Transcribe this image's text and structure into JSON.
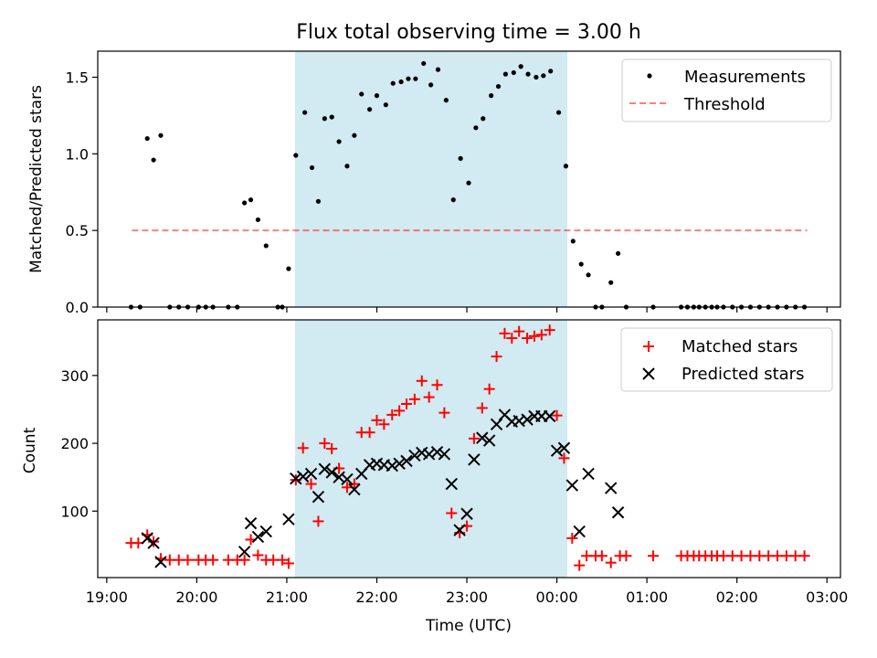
{
  "figure": {
    "title": "Flux total observing time = 3.00 h",
    "xlabel": "Time (UTC)",
    "x_ticks": [
      "19:00",
      "20:00",
      "21:00",
      "22:00",
      "23:00",
      "00:00",
      "01:00",
      "02:00",
      "03:00"
    ],
    "observing_window": {
      "start": "21:06",
      "end": "00:06",
      "color": "#add8e6"
    }
  },
  "chart_data": [
    {
      "type": "scatter",
      "title": "Flux total observing time = 3.00 h",
      "xlabel": "",
      "ylabel": "Matched/Predicted stars",
      "x_unit": "hours since 19:00 UTC",
      "xlim": [
        -0.1,
        8.15
      ],
      "ylim": [
        0,
        1.67
      ],
      "y_ticks": [
        "0.0",
        "0.5",
        "1.0",
        "1.5"
      ],
      "legend": {
        "position": "top-right",
        "entries": [
          "Measurements",
          "Threshold"
        ]
      },
      "threshold": {
        "name": "Threshold",
        "y": 0.5,
        "x_range": [
          0.28,
          7.78
        ],
        "color": "#ff0000",
        "style": "dashed"
      },
      "series": [
        {
          "name": "Measurements",
          "color": "#000000",
          "marker": "dot",
          "points": [
            [
              0.27,
              0
            ],
            [
              0.37,
              0
            ],
            [
              0.45,
              1.1
            ],
            [
              0.52,
              0.96
            ],
            [
              0.6,
              1.12
            ],
            [
              0.7,
              0
            ],
            [
              0.8,
              0
            ],
            [
              0.9,
              0
            ],
            [
              1.02,
              0
            ],
            [
              1.1,
              0
            ],
            [
              1.18,
              0
            ],
            [
              1.35,
              0
            ],
            [
              1.45,
              0
            ],
            [
              1.53,
              0.68
            ],
            [
              1.6,
              0.7
            ],
            [
              1.68,
              0.57
            ],
            [
              1.77,
              0.4
            ],
            [
              1.9,
              0
            ],
            [
              1.95,
              0
            ],
            [
              2.02,
              0.25
            ],
            [
              2.1,
              0.99
            ],
            [
              2.2,
              1.27
            ],
            [
              2.28,
              0.91
            ],
            [
              2.35,
              0.69
            ],
            [
              2.42,
              1.23
            ],
            [
              2.5,
              1.24
            ],
            [
              2.58,
              1.08
            ],
            [
              2.67,
              0.92
            ],
            [
              2.75,
              1.12
            ],
            [
              2.83,
              1.39
            ],
            [
              2.92,
              1.29
            ],
            [
              3.0,
              1.38
            ],
            [
              3.1,
              1.32
            ],
            [
              3.18,
              1.46
            ],
            [
              3.27,
              1.47
            ],
            [
              3.35,
              1.49
            ],
            [
              3.43,
              1.49
            ],
            [
              3.52,
              1.59
            ],
            [
              3.6,
              1.45
            ],
            [
              3.68,
              1.55
            ],
            [
              3.77,
              1.35
            ],
            [
              3.85,
              0.7
            ],
            [
              3.93,
              0.97
            ],
            [
              4.02,
              0.81
            ],
            [
              4.1,
              1.17
            ],
            [
              4.18,
              1.23
            ],
            [
              4.27,
              1.38
            ],
            [
              4.35,
              1.44
            ],
            [
              4.43,
              1.52
            ],
            [
              4.52,
              1.53
            ],
            [
              4.6,
              1.57
            ],
            [
              4.68,
              1.52
            ],
            [
              4.77,
              1.5
            ],
            [
              4.85,
              1.51
            ],
            [
              4.93,
              1.54
            ],
            [
              5.02,
              1.27
            ],
            [
              5.1,
              0.92
            ],
            [
              5.18,
              0.43
            ],
            [
              5.27,
              0.28
            ],
            [
              5.35,
              0.21
            ],
            [
              5.43,
              0
            ],
            [
              5.5,
              0
            ],
            [
              5.6,
              0.16
            ],
            [
              5.68,
              0.35
            ],
            [
              5.77,
              0
            ],
            [
              6.07,
              0
            ],
            [
              6.38,
              0
            ],
            [
              6.45,
              0
            ],
            [
              6.52,
              0
            ],
            [
              6.58,
              0
            ],
            [
              6.65,
              0
            ],
            [
              6.72,
              0
            ],
            [
              6.78,
              0
            ],
            [
              6.85,
              0
            ],
            [
              6.95,
              0
            ],
            [
              7.05,
              0
            ],
            [
              7.15,
              0
            ],
            [
              7.25,
              0
            ],
            [
              7.35,
              0
            ],
            [
              7.45,
              0
            ],
            [
              7.55,
              0
            ],
            [
              7.65,
              0
            ],
            [
              7.75,
              0
            ]
          ]
        }
      ]
    },
    {
      "type": "scatter",
      "title": "",
      "xlabel": "Time (UTC)",
      "ylabel": "Count",
      "x_unit": "hours since 19:00 UTC",
      "xlim": [
        -0.1,
        8.15
      ],
      "ylim": [
        2,
        382
      ],
      "y_ticks": [
        "100",
        "200",
        "300"
      ],
      "legend": {
        "position": "top-right",
        "entries": [
          "Matched stars",
          "Predicted stars"
        ]
      },
      "series": [
        {
          "name": "Matched stars",
          "color": "#ff0000",
          "marker": "plus",
          "points": [
            [
              0.27,
              53
            ],
            [
              0.35,
              53
            ],
            [
              0.45,
              65
            ],
            [
              0.52,
              55
            ],
            [
              0.6,
              30
            ],
            [
              0.7,
              28
            ],
            [
              0.8,
              28
            ],
            [
              0.9,
              28
            ],
            [
              1.02,
              28
            ],
            [
              1.1,
              28
            ],
            [
              1.18,
              28
            ],
            [
              1.35,
              28
            ],
            [
              1.45,
              28
            ],
            [
              1.53,
              28
            ],
            [
              1.6,
              58
            ],
            [
              1.68,
              35
            ],
            [
              1.77,
              28
            ],
            [
              1.85,
              28
            ],
            [
              1.95,
              28
            ],
            [
              2.02,
              23
            ],
            [
              2.1,
              146
            ],
            [
              2.18,
              193
            ],
            [
              2.27,
              140
            ],
            [
              2.35,
              85
            ],
            [
              2.42,
              200
            ],
            [
              2.5,
              192
            ],
            [
              2.58,
              163
            ],
            [
              2.67,
              135
            ],
            [
              2.75,
              140
            ],
            [
              2.83,
              216
            ],
            [
              2.92,
              216
            ],
            [
              3.0,
              234
            ],
            [
              3.08,
              228
            ],
            [
              3.17,
              242
            ],
            [
              3.25,
              248
            ],
            [
              3.33,
              258
            ],
            [
              3.42,
              265
            ],
            [
              3.5,
              292
            ],
            [
              3.58,
              268
            ],
            [
              3.67,
              286
            ],
            [
              3.75,
              245
            ],
            [
              3.83,
              97
            ],
            [
              3.92,
              68
            ],
            [
              4.0,
              78
            ],
            [
              4.08,
              207
            ],
            [
              4.17,
              252
            ],
            [
              4.25,
              280
            ],
            [
              4.33,
              328
            ],
            [
              4.42,
              362
            ],
            [
              4.5,
              355
            ],
            [
              4.58,
              365
            ],
            [
              4.67,
              355
            ],
            [
              4.75,
              358
            ],
            [
              4.83,
              360
            ],
            [
              4.92,
              367
            ],
            [
              5.0,
              241
            ],
            [
              5.08,
              178
            ],
            [
              5.17,
              60
            ],
            [
              5.25,
              20
            ],
            [
              5.33,
              34
            ],
            [
              5.43,
              34
            ],
            [
              5.5,
              34
            ],
            [
              5.6,
              24
            ],
            [
              5.7,
              34
            ],
            [
              5.77,
              34
            ],
            [
              6.07,
              34
            ],
            [
              6.38,
              34
            ],
            [
              6.45,
              34
            ],
            [
              6.52,
              34
            ],
            [
              6.58,
              34
            ],
            [
              6.65,
              34
            ],
            [
              6.72,
              34
            ],
            [
              6.78,
              34
            ],
            [
              6.85,
              34
            ],
            [
              6.95,
              34
            ],
            [
              7.05,
              34
            ],
            [
              7.15,
              34
            ],
            [
              7.25,
              34
            ],
            [
              7.35,
              34
            ],
            [
              7.45,
              34
            ],
            [
              7.55,
              34
            ],
            [
              7.65,
              34
            ],
            [
              7.75,
              34
            ]
          ]
        },
        {
          "name": "Predicted stars",
          "color": "#000000",
          "marker": "x",
          "points": [
            [
              0.45,
              60
            ],
            [
              0.52,
              53
            ],
            [
              0.6,
              25
            ],
            [
              1.53,
              40
            ],
            [
              1.6,
              82
            ],
            [
              1.68,
              62
            ],
            [
              1.77,
              70
            ],
            [
              2.02,
              88
            ],
            [
              2.1,
              148
            ],
            [
              2.18,
              151
            ],
            [
              2.27,
              155
            ],
            [
              2.35,
              121
            ],
            [
              2.42,
              162
            ],
            [
              2.5,
              157
            ],
            [
              2.58,
              150
            ],
            [
              2.67,
              147
            ],
            [
              2.75,
              132
            ],
            [
              2.83,
              155
            ],
            [
              2.92,
              168
            ],
            [
              3.0,
              170
            ],
            [
              3.08,
              168
            ],
            [
              3.17,
              167
            ],
            [
              3.25,
              170
            ],
            [
              3.33,
              174
            ],
            [
              3.42,
              182
            ],
            [
              3.5,
              186
            ],
            [
              3.58,
              184
            ],
            [
              3.67,
              187
            ],
            [
              3.75,
              184
            ],
            [
              3.83,
              140
            ],
            [
              3.92,
              72
            ],
            [
              4.0,
              96
            ],
            [
              4.08,
              176
            ],
            [
              4.17,
              208
            ],
            [
              4.25,
              204
            ],
            [
              4.33,
              228
            ],
            [
              4.42,
              242
            ],
            [
              4.5,
              232
            ],
            [
              4.58,
              233
            ],
            [
              4.67,
              235
            ],
            [
              4.75,
              240
            ],
            [
              4.83,
              240
            ],
            [
              4.92,
              240
            ],
            [
              5.0,
              189
            ],
            [
              5.08,
              193
            ],
            [
              5.17,
              138
            ],
            [
              5.25,
              70
            ],
            [
              5.35,
              155
            ],
            [
              5.6,
              134
            ],
            [
              5.68,
              98
            ]
          ]
        }
      ]
    }
  ]
}
